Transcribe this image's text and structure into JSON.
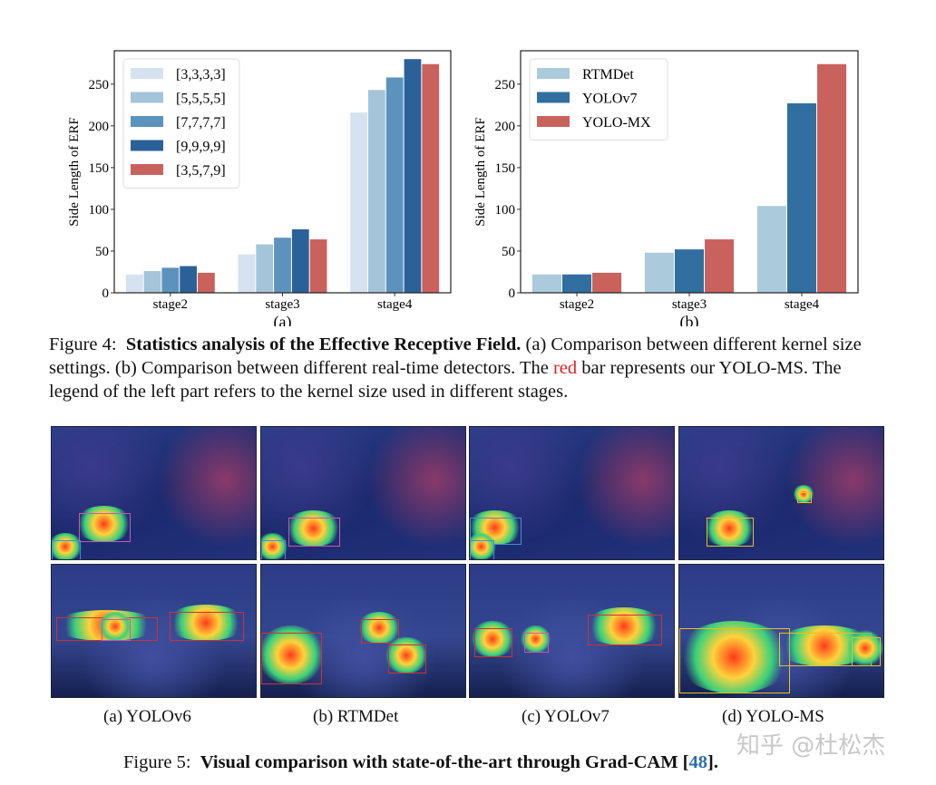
{
  "chart_data": [
    {
      "type": "bar",
      "panel_label": "(a)",
      "ylabel": "Side Length of ERF",
      "xlabel": "",
      "ylim": [
        0,
        290
      ],
      "yticks": [
        0,
        50,
        100,
        150,
        200,
        250
      ],
      "categories": [
        "stage2",
        "stage3",
        "stage4"
      ],
      "legend": "top-left",
      "series": [
        {
          "name": "[3,3,3,3]",
          "color": "#d6e2ef",
          "values": [
            22,
            46,
            216
          ]
        },
        {
          "name": "[5,5,5,5]",
          "color": "#a3c4d9",
          "values": [
            26,
            58,
            243
          ]
        },
        {
          "name": "[7,7,7,7]",
          "color": "#5b93bd",
          "values": [
            30,
            66,
            258
          ]
        },
        {
          "name": "[9,9,9,9]",
          "color": "#2b6199",
          "values": [
            32,
            76,
            280
          ]
        },
        {
          "name": "[3,5,7,9]",
          "color": "#c9625d",
          "values": [
            24,
            64,
            274
          ]
        }
      ]
    },
    {
      "type": "bar",
      "panel_label": "(b)",
      "ylabel": "Side Length of ERF",
      "xlabel": "",
      "ylim": [
        0,
        290
      ],
      "yticks": [
        0,
        50,
        100,
        150,
        200,
        250
      ],
      "categories": [
        "stage2",
        "stage3",
        "stage4"
      ],
      "legend": "top-left",
      "series": [
        {
          "name": "RTMDet",
          "color": "#abcadc",
          "values": [
            22,
            48,
            104
          ]
        },
        {
          "name": "YOLOv7",
          "color": "#306fa0",
          "values": [
            22,
            52,
            227
          ]
        },
        {
          "name": "YOLO-MX",
          "color": "#c9625d",
          "values": [
            24,
            64,
            274
          ]
        }
      ]
    }
  ],
  "figure4": {
    "prefix": "Figure 4:",
    "title": "Statistics analysis of the Effective Receptive Field.",
    "text1": "(a) Comparison between different kernel size settings. (b) Comparison between different real-time detectors. The ",
    "red_word": "red",
    "text2": " bar represents our YOLO-MS. The legend of the left part refers to the kernel size used in different stages."
  },
  "figure5": {
    "prefix": "Figure 5:",
    "title": "Visual comparison with state-of-the-art  through Grad-CAM [",
    "ref": "48",
    "suffix": "]."
  },
  "subcaptions": [
    "(a) YOLOv6",
    "(b) RTMDet",
    "(c) YOLOv7",
    "(d) YOLO-MS"
  ],
  "watermark": "知乎 @杜松杰"
}
